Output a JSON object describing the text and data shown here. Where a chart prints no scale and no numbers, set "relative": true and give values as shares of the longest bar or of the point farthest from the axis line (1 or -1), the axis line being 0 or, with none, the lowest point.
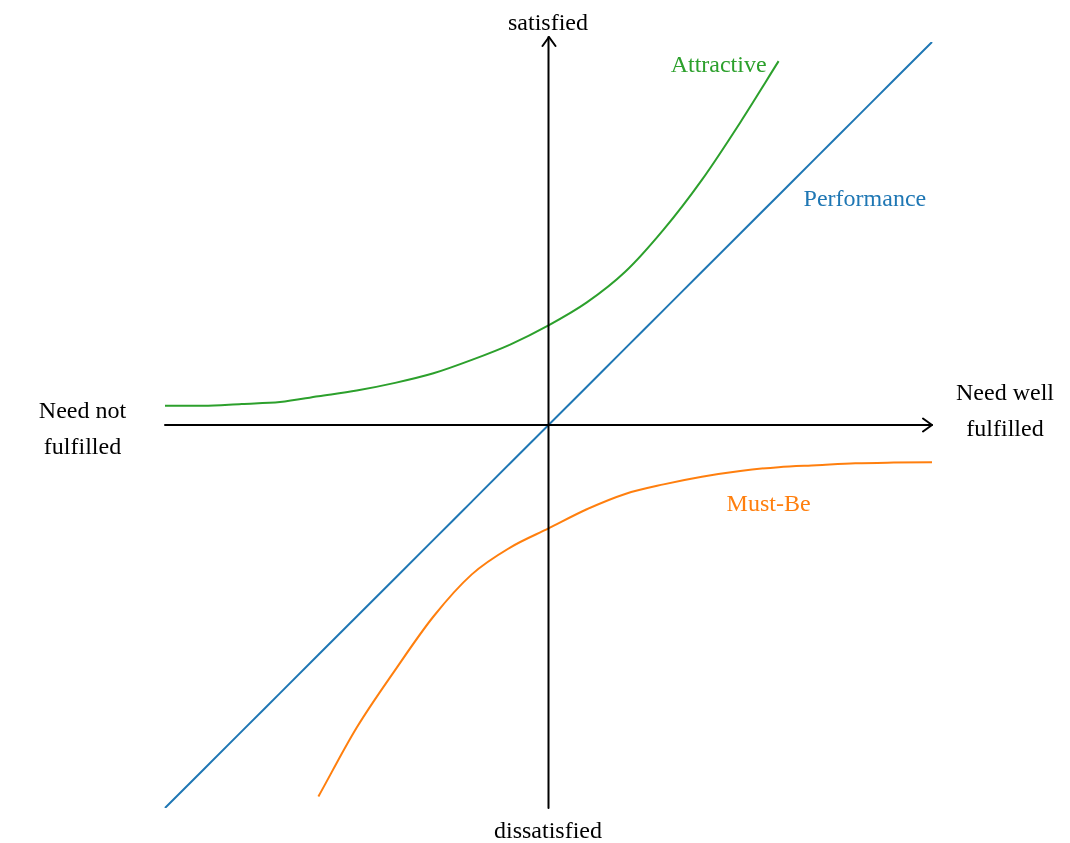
{
  "chart_data": {
    "type": "line",
    "relative": true,
    "categories": [
      null,
      null,
      null,
      null,
      null,
      null,
      null,
      null,
      null,
      null,
      null,
      null,
      null,
      null,
      null,
      null,
      null,
      null,
      null,
      null,
      null
    ],
    "series": [
      {
        "name": "Attractive",
        "color": "#2ca02c",
        "values": [
          0.05,
          0.05,
          0.055,
          0.06,
          0.075,
          0.09,
          0.11,
          0.135,
          0.17,
          0.21,
          0.26,
          0.32,
          0.4,
          0.51,
          0.64,
          0.79,
          0.95,
          null,
          null,
          null,
          null
        ]
      },
      {
        "name": "Performance",
        "color": "#1f77b4",
        "values": [
          -1,
          -0.9,
          -0.8,
          -0.7,
          -0.6,
          -0.5,
          -0.4,
          -0.3,
          -0.2,
          -0.1,
          0,
          0.1,
          0.2,
          0.3,
          0.4,
          0.5,
          0.6,
          0.7,
          0.8,
          0.9,
          1
        ]
      },
      {
        "name": "Must-Be",
        "color": "#ff7f0e",
        "values": [
          null,
          null,
          null,
          null,
          -0.97,
          -0.79,
          -0.64,
          -0.5,
          -0.39,
          -0.32,
          -0.27,
          -0.22,
          -0.18,
          -0.155,
          -0.135,
          -0.12,
          -0.11,
          -0.105,
          -0.1,
          -0.098,
          -0.097
        ]
      }
    ],
    "annotations": [
      "satisfied",
      "dissatisfied",
      "Need not fulfilled",
      "Need well fulfilled"
    ]
  }
}
